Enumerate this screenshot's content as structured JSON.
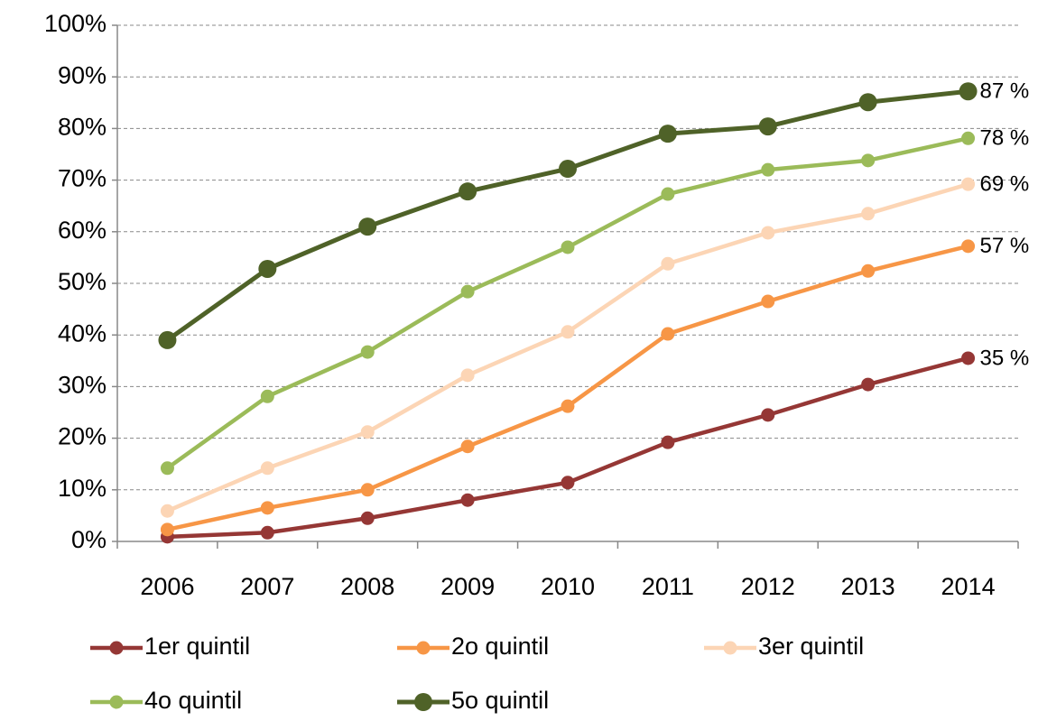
{
  "chart_data": {
    "type": "line",
    "categories": [
      "2006",
      "2007",
      "2008",
      "2009",
      "2010",
      "2011",
      "2012",
      "2013",
      "2014"
    ],
    "series": [
      {
        "name": "1er quintil",
        "color": "#953735",
        "values": [
          0.9,
          1.7,
          4.5,
          8,
          11.4,
          19.2,
          24.5,
          30.4,
          35.5
        ],
        "value_labels": [
          null,
          null,
          null,
          null,
          null,
          null,
          null,
          null,
          "35 %"
        ]
      },
      {
        "name": "2o quintil",
        "color": "#f79646",
        "values": [
          2.3,
          6.5,
          10,
          18.4,
          26.2,
          40.2,
          46.5,
          52.4,
          57.2
        ],
        "value_labels": [
          null,
          null,
          null,
          null,
          null,
          null,
          null,
          null,
          "57 %"
        ]
      },
      {
        "name": "3er quintil",
        "color": "#fcd5b5",
        "values": [
          5.9,
          14.2,
          21.2,
          32.2,
          40.6,
          53.8,
          59.8,
          63.5,
          69.2
        ],
        "value_labels": [
          null,
          null,
          null,
          null,
          null,
          null,
          null,
          null,
          "69 %"
        ]
      },
      {
        "name": "4o quintil",
        "color": "#9bbb59",
        "values": [
          14.2,
          28.1,
          36.7,
          48.4,
          57,
          67.3,
          72,
          73.8,
          78.1
        ],
        "value_labels": [
          null,
          null,
          null,
          null,
          null,
          null,
          null,
          null,
          "78 %"
        ]
      },
      {
        "name": "5o quintil",
        "color": "#4f6228",
        "values": [
          39,
          52.8,
          61,
          67.8,
          72.2,
          79,
          80.4,
          85.1,
          87.2
        ],
        "value_labels": [
          null,
          null,
          null,
          null,
          null,
          null,
          null,
          null,
          "87 %"
        ]
      }
    ],
    "ylim": [
      0,
      100
    ],
    "yticks": [
      {
        "value": 0,
        "label": "0%"
      },
      {
        "value": 10,
        "label": "10%"
      },
      {
        "value": 20,
        "label": "20%"
      },
      {
        "value": 30,
        "label": "30%"
      },
      {
        "value": 40,
        "label": "40%"
      },
      {
        "value": 50,
        "label": "50%"
      },
      {
        "value": 60,
        "label": "60%"
      },
      {
        "value": 70,
        "label": "70%"
      },
      {
        "value": 80,
        "label": "80%"
      },
      {
        "value": 90,
        "label": "90%"
      },
      {
        "value": 100,
        "label": "100%"
      }
    ],
    "grid": true,
    "legend": "bottom"
  }
}
